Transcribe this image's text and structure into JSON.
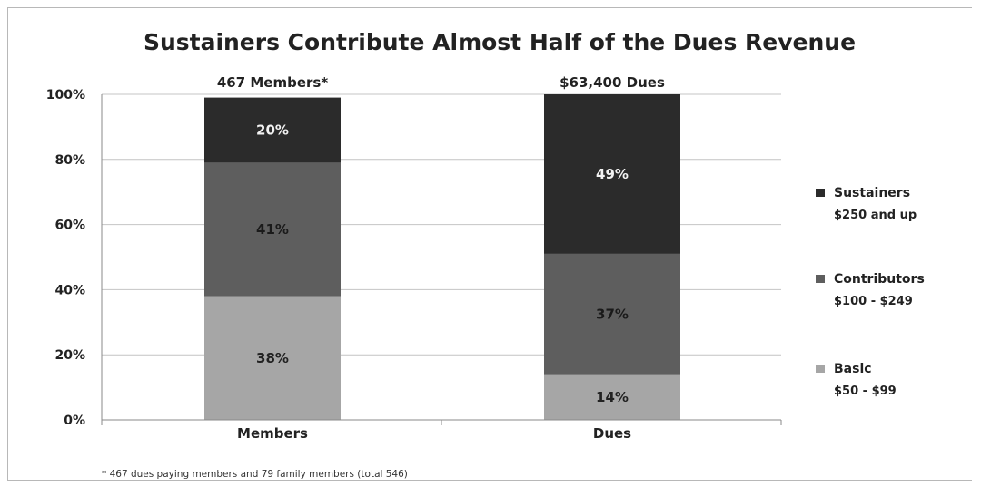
{
  "chart_data": {
    "type": "bar",
    "stacked": true,
    "percent": true,
    "title": "Sustainers Contribute Almost Half of the Dues Revenue",
    "categories": [
      "Members",
      "Dues"
    ],
    "category_headers": [
      "467 Members*",
      "$63,400 Dues"
    ],
    "y_ticks": [
      "0%",
      "20%",
      "40%",
      "60%",
      "80%",
      "100%"
    ],
    "ylim": [
      0,
      100
    ],
    "grid": true,
    "legend_position": "right",
    "series": [
      {
        "name": "Basic",
        "range": "$50 - $99",
        "values": [
          38,
          14
        ],
        "labels": [
          "38%",
          "14%"
        ],
        "color": "#a6a6a6",
        "label_color": "#222222"
      },
      {
        "name": "Contributors",
        "range": "$100 - $249",
        "values": [
          41,
          37
        ],
        "labels": [
          "41%",
          "37%"
        ],
        "color": "#5e5e5e",
        "label_color": "#1a1a1a"
      },
      {
        "name": "Sustainers",
        "range": "$250 and up",
        "values": [
          20,
          49
        ],
        "labels": [
          "20%",
          "49%"
        ],
        "color": "#2b2b2b",
        "label_color": "#f2f2f2"
      }
    ],
    "legend_order": [
      "Sustainers",
      "Contributors",
      "Basic"
    ],
    "footnote": "* 467 dues paying members and 79 family members (total 546)"
  }
}
